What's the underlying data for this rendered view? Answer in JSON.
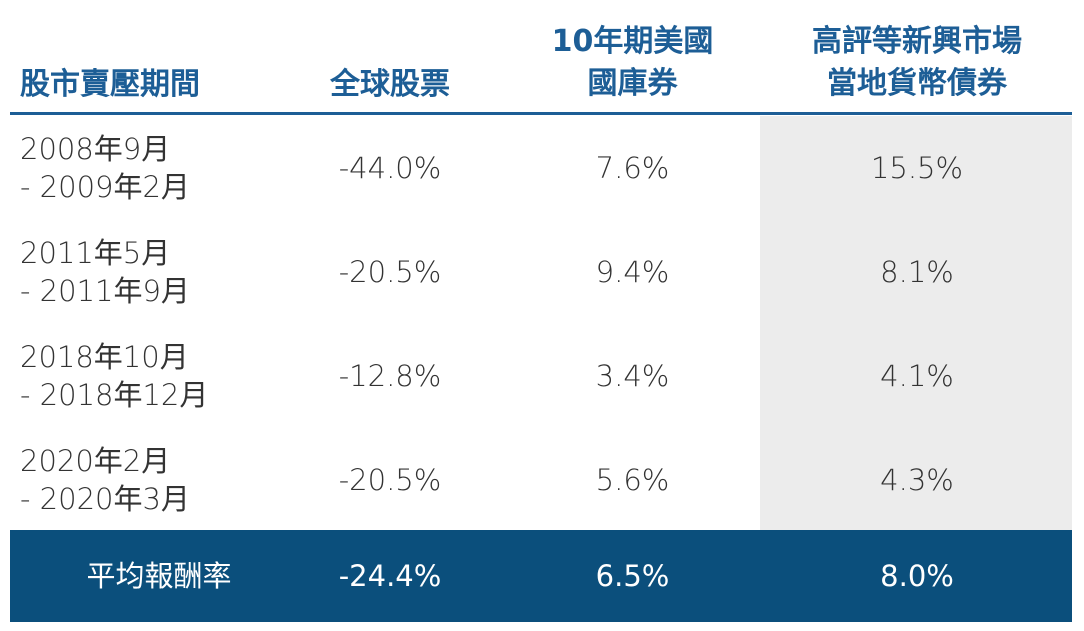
{
  "table": {
    "header": [
      [
        "股市賣壓期間"
      ],
      [
        "全球股票"
      ],
      [
        "10年期美國",
        "國庫券"
      ],
      [
        "高評等新興市場",
        "當地貨幣債券"
      ]
    ],
    "rows": [
      [
        [
          "2008年9月",
          "- 2009年2月"
        ],
        "-44.0%",
        "7.6%",
        "15.5%"
      ],
      [
        [
          "2011年5月",
          "- 2011年9月"
        ],
        "-20.5%",
        "9.4%",
        "8.1%"
      ],
      [
        [
          "2018年10月",
          "- 2018年12月"
        ],
        "-12.8%",
        "3.4%",
        "4.1%"
      ],
      [
        [
          "2020年2月",
          "- 2020年3月"
        ],
        "-20.5%",
        "5.6%",
        "4.3%"
      ]
    ],
    "footer": [
      "平均報酬率",
      "-24.4%",
      "6.5%",
      "8.0%"
    ]
  }
}
